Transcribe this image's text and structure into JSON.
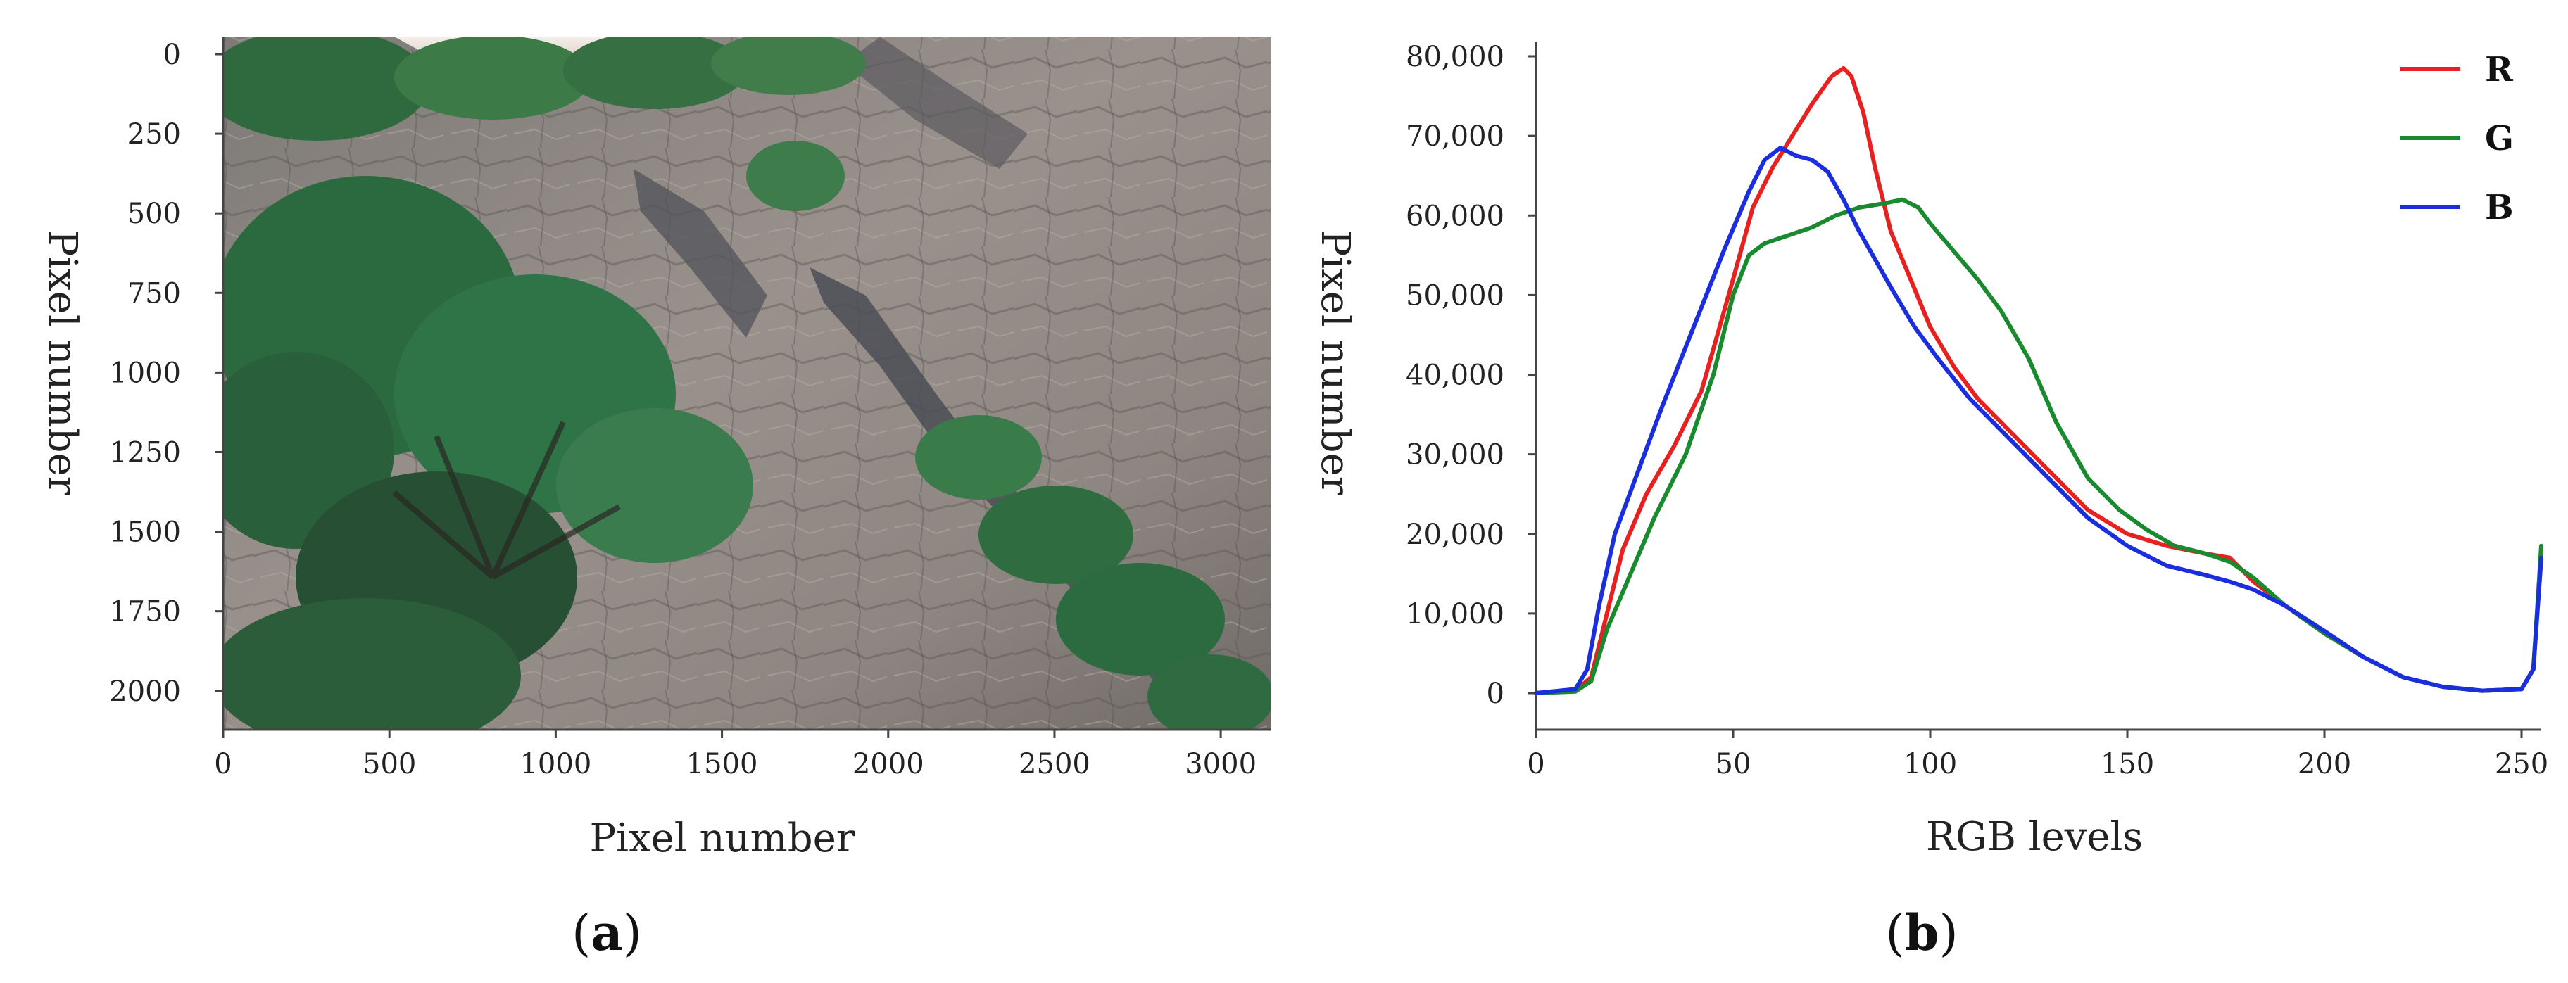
{
  "panel_a": {
    "panel_label": "a",
    "xlabel": "Pixel number",
    "ylabel": "Pixel number",
    "x_ticks": [
      "0",
      "500",
      "1000",
      "1500",
      "2000",
      "2500",
      "3000"
    ],
    "y_ticks": [
      "0",
      "250",
      "500",
      "750",
      "1000",
      "1250",
      "1500",
      "1750",
      "2000"
    ],
    "image_content": "rock-slope-photo"
  },
  "chart_data": {
    "type": "line",
    "panel_label": "b",
    "xlabel": "RGB levels",
    "ylabel": "Pixel number",
    "xlim": [
      0,
      255
    ],
    "ylim": [
      0,
      80000
    ],
    "x_ticks": [
      "0",
      "50",
      "100",
      "150",
      "200",
      "250"
    ],
    "y_ticks": [
      "0",
      "10,000",
      "20,000",
      "30,000",
      "40,000",
      "50,000",
      "60,000",
      "70,000",
      "80,000"
    ],
    "legend_position": "top-right",
    "grid": false,
    "series": [
      {
        "name": "R",
        "color": "#e8201f",
        "points": [
          [
            0,
            0
          ],
          [
            10,
            300
          ],
          [
            14,
            2000
          ],
          [
            18,
            10000
          ],
          [
            22,
            18000
          ],
          [
            28,
            25000
          ],
          [
            35,
            31000
          ],
          [
            42,
            38000
          ],
          [
            50,
            52000
          ],
          [
            55,
            61000
          ],
          [
            60,
            66000
          ],
          [
            65,
            70000
          ],
          [
            70,
            74000
          ],
          [
            75,
            77500
          ],
          [
            78,
            78500
          ],
          [
            80,
            77500
          ],
          [
            83,
            73000
          ],
          [
            86,
            66000
          ],
          [
            90,
            58000
          ],
          [
            95,
            52000
          ],
          [
            100,
            46000
          ],
          [
            106,
            41000
          ],
          [
            112,
            37000
          ],
          [
            120,
            33000
          ],
          [
            130,
            28000
          ],
          [
            140,
            23000
          ],
          [
            150,
            20000
          ],
          [
            160,
            18500
          ],
          [
            170,
            17500
          ],
          [
            176,
            17000
          ],
          [
            182,
            14000
          ],
          [
            190,
            11000
          ],
          [
            200,
            7500
          ],
          [
            210,
            4500
          ],
          [
            220,
            2000
          ],
          [
            230,
            800
          ],
          [
            240,
            300
          ],
          [
            250,
            500
          ],
          [
            253,
            3000
          ],
          [
            255,
            18000
          ]
        ]
      },
      {
        "name": "G",
        "color": "#1a8a2e",
        "points": [
          [
            0,
            0
          ],
          [
            10,
            200
          ],
          [
            14,
            1500
          ],
          [
            18,
            8000
          ],
          [
            24,
            15000
          ],
          [
            30,
            22000
          ],
          [
            38,
            30000
          ],
          [
            45,
            40000
          ],
          [
            50,
            50000
          ],
          [
            54,
            55000
          ],
          [
            58,
            56500
          ],
          [
            64,
            57500
          ],
          [
            70,
            58500
          ],
          [
            76,
            60000
          ],
          [
            82,
            61000
          ],
          [
            88,
            61500
          ],
          [
            93,
            62000
          ],
          [
            97,
            61000
          ],
          [
            100,
            59000
          ],
          [
            106,
            55500
          ],
          [
            112,
            52000
          ],
          [
            118,
            48000
          ],
          [
            125,
            42000
          ],
          [
            132,
            34000
          ],
          [
            140,
            27000
          ],
          [
            148,
            23000
          ],
          [
            155,
            20500
          ],
          [
            162,
            18500
          ],
          [
            170,
            17500
          ],
          [
            176,
            16500
          ],
          [
            182,
            14500
          ],
          [
            190,
            11000
          ],
          [
            200,
            7500
          ],
          [
            210,
            4500
          ],
          [
            220,
            2000
          ],
          [
            230,
            800
          ],
          [
            240,
            300
          ],
          [
            250,
            500
          ],
          [
            253,
            3000
          ],
          [
            255,
            18500
          ]
        ]
      },
      {
        "name": "B",
        "color": "#1a2ee0",
        "points": [
          [
            0,
            0
          ],
          [
            10,
            500
          ],
          [
            13,
            3000
          ],
          [
            16,
            11000
          ],
          [
            20,
            20000
          ],
          [
            26,
            28000
          ],
          [
            32,
            36000
          ],
          [
            40,
            46000
          ],
          [
            48,
            56000
          ],
          [
            54,
            63000
          ],
          [
            58,
            67000
          ],
          [
            62,
            68500
          ],
          [
            66,
            67500
          ],
          [
            70,
            67000
          ],
          [
            74,
            65500
          ],
          [
            78,
            62000
          ],
          [
            82,
            58000
          ],
          [
            86,
            54500
          ],
          [
            90,
            51000
          ],
          [
            96,
            46000
          ],
          [
            102,
            42000
          ],
          [
            110,
            37000
          ],
          [
            120,
            32000
          ],
          [
            130,
            27000
          ],
          [
            140,
            22000
          ],
          [
            150,
            18500
          ],
          [
            160,
            16000
          ],
          [
            170,
            14800
          ],
          [
            176,
            14000
          ],
          [
            182,
            13000
          ],
          [
            190,
            11000
          ],
          [
            200,
            7800
          ],
          [
            210,
            4500
          ],
          [
            220,
            2000
          ],
          [
            230,
            800
          ],
          [
            240,
            300
          ],
          [
            250,
            500
          ],
          [
            253,
            3000
          ],
          [
            255,
            17000
          ]
        ]
      }
    ]
  }
}
